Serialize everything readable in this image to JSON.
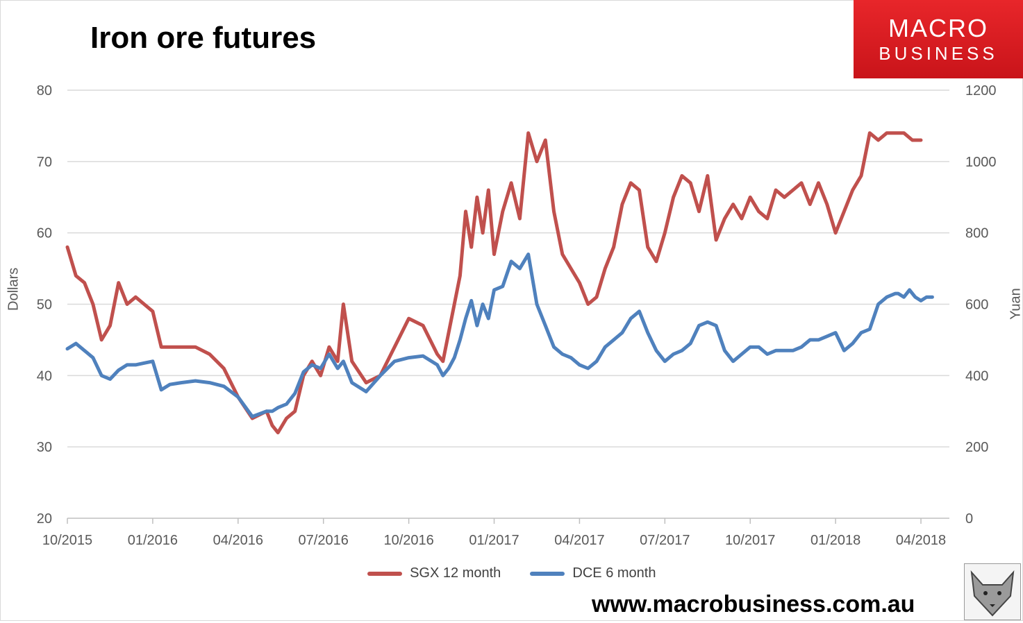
{
  "title": "Iron ore futures",
  "logo": {
    "line1": "MACRO",
    "line2": "BUSINESS"
  },
  "url": "www.macrobusiness.com.au",
  "colors": {
    "sgx": "#c0504d",
    "dce": "#4f81bd",
    "grid": "#d9d9d9",
    "axis_text": "#595959"
  },
  "chart_data": {
    "type": "line",
    "title": "Iron ore futures",
    "ylabel": "Dollars",
    "y2label": "Yuan",
    "ylim": [
      20,
      80
    ],
    "y2lim": [
      0,
      1200
    ],
    "yticks": [
      "20",
      "30",
      "40",
      "50",
      "60",
      "70",
      "80"
    ],
    "y2ticks": [
      "0",
      "200",
      "400",
      "600",
      "800",
      "1000",
      "1200"
    ],
    "xticks": [
      "10/2015",
      "01/2016",
      "04/2016",
      "07/2016",
      "10/2016",
      "01/2017",
      "04/2017",
      "07/2017",
      "10/2017",
      "01/2018",
      "04/2018"
    ],
    "xlim": [
      0,
      31
    ],
    "grid": true,
    "legend_position": "bottom",
    "x_unit": "months since 10/2015",
    "series": [
      {
        "name": "SGX 12 month",
        "axis": "left",
        "color": "#c0504d",
        "x": [
          0,
          0.3,
          0.6,
          0.9,
          1.2,
          1.5,
          1.8,
          2.1,
          2.4,
          2.7,
          3.0,
          3.3,
          3.6,
          4.0,
          4.5,
          5.0,
          5.5,
          6.0,
          6.5,
          7.0,
          7.2,
          7.4,
          7.7,
          8.0,
          8.3,
          8.6,
          8.9,
          9.2,
          9.5,
          9.7,
          10.0,
          10.5,
          11.0,
          11.5,
          12.0,
          12.5,
          13.0,
          13.2,
          13.4,
          13.6,
          13.8,
          14.0,
          14.2,
          14.4,
          14.6,
          14.8,
          15.0,
          15.3,
          15.6,
          15.9,
          16.2,
          16.5,
          16.8,
          17.1,
          17.4,
          17.7,
          18.0,
          18.3,
          18.6,
          18.9,
          19.2,
          19.5,
          19.8,
          20.1,
          20.4,
          20.7,
          21.0,
          21.3,
          21.6,
          21.9,
          22.2,
          22.5,
          22.8,
          23.1,
          23.4,
          23.7,
          24.0,
          24.3,
          24.6,
          24.9,
          25.2,
          25.5,
          25.8,
          26.1,
          26.4,
          26.7,
          27.0,
          27.3,
          27.6,
          27.9,
          28.2,
          28.5,
          28.8,
          29.1,
          29.4,
          29.7,
          30.0
        ],
        "values": [
          58,
          54,
          53,
          50,
          45,
          47,
          53,
          50,
          51,
          50,
          49,
          44,
          44,
          44,
          44,
          43,
          41,
          37,
          34,
          35,
          33,
          32,
          34,
          35,
          40,
          42,
          40,
          44,
          42,
          50,
          42,
          39,
          40,
          44,
          48,
          47,
          43,
          42,
          46,
          50,
          54,
          63,
          58,
          65,
          60,
          66,
          57,
          63,
          67,
          62,
          74,
          70,
          73,
          63,
          57,
          55,
          53,
          50,
          51,
          55,
          58,
          64,
          67,
          66,
          58,
          56,
          60,
          65,
          68,
          67,
          63,
          68,
          59,
          62,
          64,
          62,
          65,
          63,
          62,
          66,
          65,
          66,
          67,
          64,
          67,
          64,
          60,
          63,
          66,
          68,
          74,
          73,
          74,
          74,
          74,
          73,
          73
        ]
      },
      {
        "name": "DCE 6 month",
        "axis": "right",
        "color": "#4f81bd",
        "x": [
          0,
          0.3,
          0.6,
          0.9,
          1.2,
          1.5,
          1.8,
          2.1,
          2.4,
          2.7,
          3.0,
          3.3,
          3.6,
          4.0,
          4.5,
          5.0,
          5.5,
          6.0,
          6.5,
          7.0,
          7.2,
          7.4,
          7.7,
          8.0,
          8.3,
          8.6,
          8.9,
          9.2,
          9.5,
          9.7,
          10.0,
          10.5,
          11.0,
          11.5,
          12.0,
          12.5,
          13.0,
          13.2,
          13.4,
          13.6,
          13.8,
          14.0,
          14.2,
          14.4,
          14.6,
          14.8,
          15.0,
          15.3,
          15.6,
          15.9,
          16.2,
          16.5,
          16.8,
          17.1,
          17.4,
          17.7,
          18.0,
          18.3,
          18.6,
          18.9,
          19.2,
          19.5,
          19.8,
          20.1,
          20.4,
          20.7,
          21.0,
          21.3,
          21.6,
          21.9,
          22.2,
          22.5,
          22.8,
          23.1,
          23.4,
          23.7,
          24.0,
          24.3,
          24.6,
          24.9,
          25.2,
          25.5,
          25.8,
          26.1,
          26.4,
          26.7,
          27.0,
          27.3,
          27.6,
          27.9,
          28.2,
          28.5,
          28.8,
          29.1,
          29.2,
          29.4,
          29.6,
          29.8,
          30.0,
          30.2,
          30.4
        ],
        "values": [
          475,
          490,
          470,
          450,
          400,
          390,
          415,
          430,
          430,
          435,
          440,
          360,
          375,
          380,
          385,
          380,
          370,
          340,
          285,
          300,
          300,
          310,
          320,
          350,
          410,
          430,
          420,
          460,
          420,
          440,
          380,
          355,
          400,
          440,
          450,
          455,
          430,
          400,
          420,
          450,
          500,
          560,
          610,
          540,
          600,
          560,
          640,
          650,
          720,
          700,
          740,
          600,
          540,
          480,
          460,
          450,
          430,
          420,
          440,
          480,
          500,
          520,
          560,
          580,
          520,
          470,
          440,
          460,
          470,
          490,
          540,
          550,
          540,
          470,
          440,
          460,
          480,
          480,
          460,
          470,
          470,
          470,
          480,
          500,
          500,
          510,
          520,
          470,
          490,
          520,
          530,
          600,
          620,
          630,
          630,
          620,
          640,
          620,
          610,
          620,
          620
        ]
      }
    ]
  }
}
